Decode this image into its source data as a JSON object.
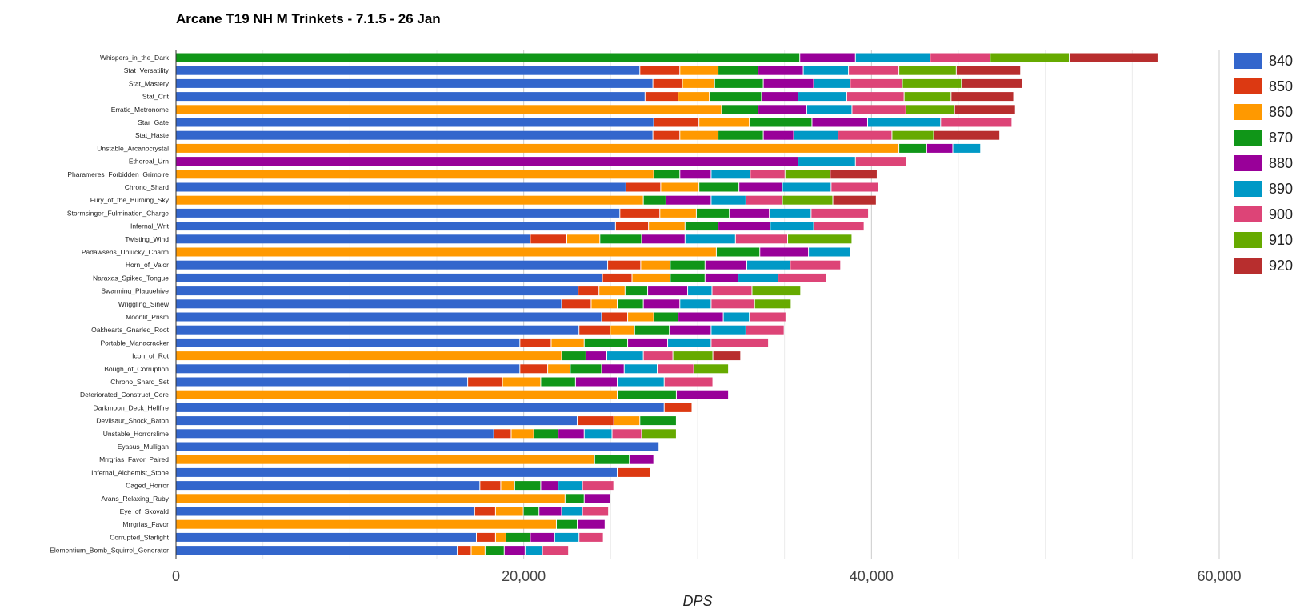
{
  "chart_data": {
    "type": "bar",
    "orientation": "horizontal",
    "stacked": true,
    "title": "Arcane T19 NH M Trinkets - 7.1.5 - 26 Jan",
    "xlabel": "DPS",
    "ylabel": "",
    "xlim": [
      0,
      60000
    ],
    "xticks": [
      "0",
      "20,000",
      "40,000",
      "60,000"
    ],
    "grid": true,
    "legend_position": "right",
    "colors": [
      "#3366cc",
      "#dc3912",
      "#ff9900",
      "#109618",
      "#990099",
      "#0099c6",
      "#dd4477",
      "#66aa00",
      "#b82e2e"
    ],
    "series_names": [
      "840",
      "850",
      "860",
      "870",
      "880",
      "890",
      "900",
      "910",
      "920"
    ],
    "categories": [
      {
        "name": "Whispers_in_the_Dark",
        "base": 870,
        "segments": [
          35900,
          3200,
          4300,
          3450,
          4550,
          5100
        ]
      },
      {
        "name": "Stat_Versatility",
        "base": 840,
        "segments": [
          26700,
          2300,
          2200,
          2300,
          2600,
          2600,
          2900,
          3300,
          3700
        ]
      },
      {
        "name": "Stat_Mastery",
        "base": 840,
        "segments": [
          27450,
          1700,
          1850,
          2800,
          2900,
          2100,
          3000,
          3400,
          3500
        ]
      },
      {
        "name": "Stat_Crit",
        "base": 840,
        "segments": [
          27000,
          1900,
          1800,
          3000,
          2100,
          2800,
          3300,
          2700,
          3600
        ]
      },
      {
        "name": "Erratic_Metronome",
        "base": 860,
        "segments": [
          31400,
          2100,
          2800,
          2600,
          3100,
          2800,
          3500
        ]
      },
      {
        "name": "Star_Gate",
        "base": 840,
        "segments": [
          27500,
          2600,
          2900,
          3600,
          3200,
          4200,
          4100
        ]
      },
      {
        "name": "Stat_Haste",
        "base": 840,
        "segments": [
          27450,
          1550,
          2200,
          2600,
          1750,
          2550,
          3100,
          2400,
          3800
        ]
      },
      {
        "name": "Unstable_Arcanocrystal",
        "base": 860,
        "segments": [
          41600,
          1600,
          1500,
          1600
        ]
      },
      {
        "name": "Ethereal_Urn",
        "base": 880,
        "segments": [
          35800,
          3300,
          2950
        ]
      },
      {
        "name": "Pharameres_Forbidden_Grimoire",
        "base": 860,
        "segments": [
          27500,
          1500,
          1800,
          2250,
          2000,
          2600,
          2700
        ]
      },
      {
        "name": "Chrono_Shard",
        "base": 840,
        "segments": [
          25900,
          2000,
          2200,
          2300,
          2500,
          2800,
          2700
        ]
      },
      {
        "name": "Fury_of_the_Burning_Sky",
        "base": 860,
        "segments": [
          26900,
          1300,
          2600,
          2000,
          2100,
          2900,
          2500
        ]
      },
      {
        "name": "Stormsinger_Fulmination_Charge",
        "base": 840,
        "segments": [
          25550,
          2300,
          2100,
          1900,
          2300,
          2400,
          3300
        ]
      },
      {
        "name": "Infernal_Writ",
        "base": 840,
        "segments": [
          25300,
          1900,
          2100,
          1900,
          3000,
          2500,
          2900
        ]
      },
      {
        "name": "Twisting_Wind",
        "base": 840,
        "segments": [
          20400,
          2100,
          1900,
          2400,
          2500,
          2900,
          3000,
          3700
        ]
      },
      {
        "name": "Padawsens_Unlucky_Charm",
        "base": 860,
        "segments": [
          31100,
          2500,
          2800,
          2400
        ]
      },
      {
        "name": "Horn_of_Valor",
        "base": 840,
        "segments": [
          24850,
          1900,
          1700,
          2000,
          2400,
          2500,
          2900
        ]
      },
      {
        "name": "Naraxas_Spiked_Tongue",
        "base": 840,
        "segments": [
          24550,
          1700,
          2200,
          2000,
          1900,
          2300,
          2800
        ]
      },
      {
        "name": "Swarming_Plaguehive",
        "base": 840,
        "segments": [
          23150,
          1200,
          1500,
          1300,
          2300,
          1400,
          2300,
          2800
        ]
      },
      {
        "name": "Wriggling_Sinew",
        "base": 840,
        "segments": [
          22200,
          1700,
          1500,
          1500,
          2100,
          1800,
          2500,
          2100
        ]
      },
      {
        "name": "Moonlit_Prism",
        "base": 840,
        "segments": [
          24500,
          1500,
          1500,
          1400,
          2600,
          1500,
          2100
        ]
      },
      {
        "name": "Oakhearts_Gnarled_Root",
        "base": 840,
        "segments": [
          23200,
          1800,
          1400,
          2000,
          2400,
          2000,
          2200
        ]
      },
      {
        "name": "Portable_Manacracker",
        "base": 840,
        "segments": [
          19800,
          1800,
          1900,
          2500,
          2300,
          2500,
          3300
        ]
      },
      {
        "name": "Icon_of_Rot",
        "base": 860,
        "segments": [
          22200,
          1400,
          1200,
          2100,
          1700,
          2300,
          1600
        ]
      },
      {
        "name": "Bough_of_Corruption",
        "base": 840,
        "segments": [
          19800,
          1600,
          1300,
          1800,
          1300,
          1900,
          2100,
          2000
        ]
      },
      {
        "name": "Chrono_Shard_Set",
        "base": 840,
        "segments": [
          16800,
          2000,
          2200,
          2000,
          2400,
          2700,
          2800
        ]
      },
      {
        "name": "Deteriorated_Construct_Core",
        "base": 860,
        "segments": [
          25400,
          3400,
          3000
        ]
      },
      {
        "name": "Darkmoon_Deck_Hellfire",
        "base": 840,
        "segments": [
          28100,
          1600
        ]
      },
      {
        "name": "Devilsaur_Shock_Baton",
        "base": 840,
        "segments": [
          23100,
          2100,
          1500,
          2100
        ]
      },
      {
        "name": "Unstable_Horrorslime",
        "base": 840,
        "segments": [
          18300,
          1000,
          1300,
          1400,
          1500,
          1600,
          1700,
          2000
        ]
      },
      {
        "name": "Eyasus_Mulligan",
        "base": 840,
        "segments": [
          27800
        ]
      },
      {
        "name": "Mrrgrias_Favor_Paired",
        "base": 860,
        "segments": [
          24100,
          2000,
          1400
        ]
      },
      {
        "name": "Infernal_Alchemist_Stone",
        "base": 840,
        "segments": [
          25400,
          1900
        ]
      },
      {
        "name": "Caged_Horror",
        "base": 840,
        "segments": [
          17500,
          1200,
          800,
          1500,
          1000,
          1400,
          1800
        ]
      },
      {
        "name": "Arans_Relaxing_Ruby",
        "base": 860,
        "segments": [
          22400,
          1100,
          1500
        ]
      },
      {
        "name": "Eye_of_Skovald",
        "base": 840,
        "segments": [
          17200,
          1200,
          1600,
          900,
          1300,
          1200,
          1500
        ]
      },
      {
        "name": "Mrrgrias_Favor",
        "base": 860,
        "segments": [
          21900,
          1200,
          1600
        ]
      },
      {
        "name": "Corrupted_Starlight",
        "base": 840,
        "segments": [
          17300,
          1100,
          600,
          1400,
          1400,
          1400,
          1400
        ]
      },
      {
        "name": "Elementium_Bomb_Squirrel_Generator",
        "base": 840,
        "segments": [
          16200,
          800,
          800,
          1100,
          1200,
          1000,
          1500
        ]
      }
    ]
  }
}
